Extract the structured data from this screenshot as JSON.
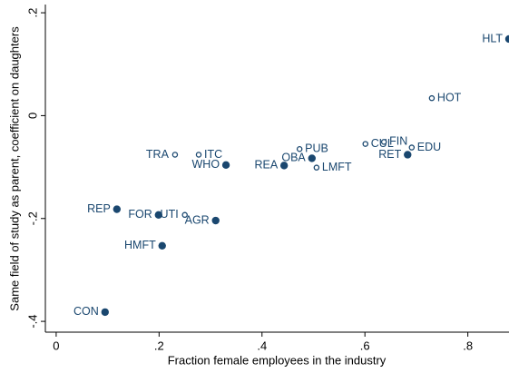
{
  "chart_data": {
    "type": "scatter",
    "x_label": "Fraction female employees in the industry",
    "y_label": "Same field of study as parent, coefficient on daughters",
    "xlim": [
      -0.021,
      0.88
    ],
    "ylim": [
      -0.421,
      0.216
    ],
    "xticks": [
      0,
      {
        "value": 0.2,
        "label": ".2"
      },
      {
        "value": 0.4,
        "label": ".4"
      },
      {
        "value": 0.6,
        "label": ".6"
      },
      {
        "value": 0.8,
        "label": ".8"
      }
    ],
    "yticks": [
      {
        "value": -0.4,
        "label": "-.4"
      },
      {
        "value": -0.2,
        "label": "-.2"
      },
      0,
      {
        "value": 0.2,
        "label": ".2"
      }
    ],
    "series": [
      {
        "marker": "filled",
        "color": "#1a476f",
        "points": [
          {
            "label": "HLT",
            "x": 0.88,
            "y": 0.149,
            "label_side": "left"
          },
          {
            "label": "RET",
            "x": 0.683,
            "y": -0.076,
            "label_side": "left"
          },
          {
            "label": "OBA",
            "x": 0.497,
            "y": -0.083,
            "label_side": "left"
          },
          {
            "label": "REA",
            "x": 0.443,
            "y": -0.097,
            "label_side": "left"
          },
          {
            "label": "WHO",
            "x": 0.33,
            "y": -0.096,
            "label_side": "left"
          },
          {
            "label": "REP",
            "x": 0.118,
            "y": -0.182,
            "label_side": "left"
          },
          {
            "label": "FOR",
            "x": 0.199,
            "y": -0.193,
            "label_side": "left"
          },
          {
            "label": "AGR",
            "x": 0.31,
            "y": -0.204,
            "label_side": "left"
          },
          {
            "label": "HMFT",
            "x": 0.206,
            "y": -0.253,
            "label_side": "left"
          },
          {
            "label": "CON",
            "x": 0.095,
            "y": -0.382,
            "label_side": "left"
          }
        ]
      },
      {
        "marker": "hollow",
        "color": "#1a476f",
        "points": [
          {
            "label": "HOT",
            "x": 0.73,
            "y": 0.034,
            "label_side": "right"
          },
          {
            "label": "CUL",
            "x": 0.601,
            "y": -0.055,
            "label_side": "right"
          },
          {
            "label": "FIN",
            "x": 0.637,
            "y": -0.051,
            "label_side": "right"
          },
          {
            "label": "EDU",
            "x": 0.691,
            "y": -0.062,
            "label_side": "right"
          },
          {
            "label": "PUB",
            "x": 0.473,
            "y": -0.065,
            "label_side": "right"
          },
          {
            "label": "LMFT",
            "x": 0.506,
            "y": -0.101,
            "label_side": "right"
          },
          {
            "label": "TRA",
            "x": 0.231,
            "y": -0.076,
            "label_side": "left"
          },
          {
            "label": "ITC",
            "x": 0.277,
            "y": -0.076,
            "label_side": "right"
          },
          {
            "label": "UTI",
            "x": 0.25,
            "y": -0.193,
            "label_side": "left"
          }
        ]
      }
    ]
  }
}
